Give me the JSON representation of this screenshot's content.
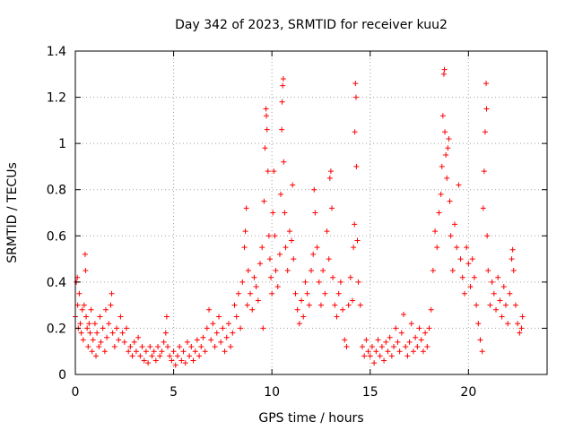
{
  "chart_data": {
    "type": "scatter",
    "title": "Day 342 of 2023, SRMTID for receiver kuu2",
    "xlabel": "GPS time / hours",
    "ylabel": "SRMTID / TECUs",
    "xlim": [
      0,
      24
    ],
    "ylim": [
      0,
      1.4
    ],
    "xticks": [
      0,
      5,
      10,
      15,
      20
    ],
    "xtick_labels": [
      "0",
      "5",
      "10",
      "15",
      "20"
    ],
    "yticks": [
      0,
      0.2,
      0.4,
      0.6,
      0.8,
      1.0,
      1.2,
      1.4
    ],
    "ytick_labels": [
      "0",
      "0.2",
      "0.4",
      "0.6",
      "0.8",
      "1",
      "1.2",
      "1.4"
    ],
    "grid": true,
    "marker": "+",
    "series": [
      {
        "name": "SRMTID",
        "color": "#ff0000",
        "points": [
          [
            0.0,
            0.25
          ],
          [
            0.05,
            0.4
          ],
          [
            0.1,
            0.42
          ],
          [
            0.12,
            0.3
          ],
          [
            0.15,
            0.2
          ],
          [
            0.2,
            0.35
          ],
          [
            0.25,
            0.22
          ],
          [
            0.3,
            0.18
          ],
          [
            0.35,
            0.28
          ],
          [
            0.4,
            0.15
          ],
          [
            0.45,
            0.3
          ],
          [
            0.5,
            0.52
          ],
          [
            0.52,
            0.45
          ],
          [
            0.55,
            0.25
          ],
          [
            0.6,
            0.2
          ],
          [
            0.65,
            0.12
          ],
          [
            0.7,
            0.22
          ],
          [
            0.75,
            0.18
          ],
          [
            0.8,
            0.28
          ],
          [
            0.85,
            0.1
          ],
          [
            0.9,
            0.15
          ],
          [
            1.0,
            0.22
          ],
          [
            1.05,
            0.08
          ],
          [
            1.1,
            0.18
          ],
          [
            1.2,
            0.12
          ],
          [
            1.25,
            0.25
          ],
          [
            1.3,
            0.14
          ],
          [
            1.4,
            0.2
          ],
          [
            1.5,
            0.1
          ],
          [
            1.55,
            0.28
          ],
          [
            1.6,
            0.16
          ],
          [
            1.7,
            0.22
          ],
          [
            1.8,
            0.3
          ],
          [
            1.85,
            0.35
          ],
          [
            1.9,
            0.18
          ],
          [
            2.0,
            0.12
          ],
          [
            2.1,
            0.2
          ],
          [
            2.2,
            0.15
          ],
          [
            2.3,
            0.25
          ],
          [
            2.4,
            0.18
          ],
          [
            2.5,
            0.14
          ],
          [
            2.6,
            0.2
          ],
          [
            2.7,
            0.1
          ],
          [
            2.8,
            0.12
          ],
          [
            2.9,
            0.08
          ],
          [
            3.0,
            0.14
          ],
          [
            3.1,
            0.1
          ],
          [
            3.2,
            0.16
          ],
          [
            3.3,
            0.08
          ],
          [
            3.4,
            0.12
          ],
          [
            3.5,
            0.06
          ],
          [
            3.6,
            0.1
          ],
          [
            3.7,
            0.05
          ],
          [
            3.8,
            0.12
          ],
          [
            3.9,
            0.08
          ],
          [
            4.0,
            0.1
          ],
          [
            4.1,
            0.06
          ],
          [
            4.2,
            0.12
          ],
          [
            4.3,
            0.08
          ],
          [
            4.4,
            0.1
          ],
          [
            4.5,
            0.14
          ],
          [
            4.6,
            0.18
          ],
          [
            4.65,
            0.25
          ],
          [
            4.7,
            0.12
          ],
          [
            4.8,
            0.08
          ],
          [
            4.9,
            0.06
          ],
          [
            5.0,
            0.1
          ],
          [
            5.1,
            0.04
          ],
          [
            5.2,
            0.08
          ],
          [
            5.3,
            0.12
          ],
          [
            5.4,
            0.06
          ],
          [
            5.5,
            0.1
          ],
          [
            5.6,
            0.05
          ],
          [
            5.7,
            0.14
          ],
          [
            5.8,
            0.08
          ],
          [
            5.9,
            0.12
          ],
          [
            6.0,
            0.06
          ],
          [
            6.1,
            0.1
          ],
          [
            6.2,
            0.15
          ],
          [
            6.3,
            0.08
          ],
          [
            6.4,
            0.12
          ],
          [
            6.5,
            0.16
          ],
          [
            6.6,
            0.1
          ],
          [
            6.7,
            0.2
          ],
          [
            6.8,
            0.28
          ],
          [
            6.9,
            0.15
          ],
          [
            7.0,
            0.22
          ],
          [
            7.1,
            0.12
          ],
          [
            7.2,
            0.18
          ],
          [
            7.3,
            0.25
          ],
          [
            7.4,
            0.14
          ],
          [
            7.5,
            0.2
          ],
          [
            7.6,
            0.1
          ],
          [
            7.7,
            0.16
          ],
          [
            7.8,
            0.22
          ],
          [
            7.9,
            0.12
          ],
          [
            8.0,
            0.18
          ],
          [
            8.1,
            0.3
          ],
          [
            8.2,
            0.25
          ],
          [
            8.3,
            0.35
          ],
          [
            8.4,
            0.2
          ],
          [
            8.5,
            0.4
          ],
          [
            8.6,
            0.55
          ],
          [
            8.65,
            0.62
          ],
          [
            8.7,
            0.72
          ],
          [
            8.75,
            0.3
          ],
          [
            8.8,
            0.45
          ],
          [
            8.9,
            0.35
          ],
          [
            9.0,
            0.28
          ],
          [
            9.1,
            0.42
          ],
          [
            9.2,
            0.38
          ],
          [
            9.3,
            0.32
          ],
          [
            9.4,
            0.48
          ],
          [
            9.5,
            0.55
          ],
          [
            9.55,
            0.2
          ],
          [
            9.6,
            0.75
          ],
          [
            9.65,
            0.98
          ],
          [
            9.7,
            1.15
          ],
          [
            9.72,
            1.12
          ],
          [
            9.75,
            1.06
          ],
          [
            9.8,
            0.88
          ],
          [
            9.85,
            0.6
          ],
          [
            9.9,
            0.5
          ],
          [
            9.95,
            0.42
          ],
          [
            10.0,
            0.35
          ],
          [
            10.05,
            0.7
          ],
          [
            10.1,
            0.88
          ],
          [
            10.15,
            0.6
          ],
          [
            10.2,
            0.45
          ],
          [
            10.3,
            0.38
          ],
          [
            10.4,
            0.52
          ],
          [
            10.45,
            0.78
          ],
          [
            10.5,
            1.06
          ],
          [
            10.52,
            1.18
          ],
          [
            10.55,
            1.25
          ],
          [
            10.58,
            1.28
          ],
          [
            10.6,
            0.92
          ],
          [
            10.65,
            0.7
          ],
          [
            10.7,
            0.55
          ],
          [
            10.8,
            0.45
          ],
          [
            10.9,
            0.62
          ],
          [
            11.0,
            0.58
          ],
          [
            11.05,
            0.82
          ],
          [
            11.1,
            0.5
          ],
          [
            11.2,
            0.35
          ],
          [
            11.3,
            0.28
          ],
          [
            11.4,
            0.22
          ],
          [
            11.5,
            0.32
          ],
          [
            11.6,
            0.25
          ],
          [
            11.7,
            0.4
          ],
          [
            11.8,
            0.35
          ],
          [
            11.9,
            0.3
          ],
          [
            12.0,
            0.45
          ],
          [
            12.1,
            0.52
          ],
          [
            12.15,
            0.8
          ],
          [
            12.2,
            0.7
          ],
          [
            12.3,
            0.55
          ],
          [
            12.4,
            0.4
          ],
          [
            12.5,
            0.3
          ],
          [
            12.6,
            0.45
          ],
          [
            12.7,
            0.35
          ],
          [
            12.8,
            0.62
          ],
          [
            12.9,
            0.5
          ],
          [
            12.95,
            0.85
          ],
          [
            13.0,
            0.88
          ],
          [
            13.05,
            0.72
          ],
          [
            13.1,
            0.42
          ],
          [
            13.2,
            0.3
          ],
          [
            13.3,
            0.25
          ],
          [
            13.4,
            0.35
          ],
          [
            13.5,
            0.4
          ],
          [
            13.6,
            0.28
          ],
          [
            13.7,
            0.15
          ],
          [
            13.8,
            0.12
          ],
          [
            13.9,
            0.3
          ],
          [
            14.0,
            0.42
          ],
          [
            14.1,
            0.32
          ],
          [
            14.15,
            0.55
          ],
          [
            14.2,
            0.65
          ],
          [
            14.22,
            1.05
          ],
          [
            14.25,
            1.26
          ],
          [
            14.28,
            1.2
          ],
          [
            14.3,
            0.9
          ],
          [
            14.35,
            0.58
          ],
          [
            14.4,
            0.4
          ],
          [
            14.5,
            0.3
          ],
          [
            14.6,
            0.12
          ],
          [
            14.7,
            0.08
          ],
          [
            14.8,
            0.15
          ],
          [
            14.9,
            0.1
          ],
          [
            15.0,
            0.08
          ],
          [
            15.1,
            0.12
          ],
          [
            15.2,
            0.05
          ],
          [
            15.3,
            0.1
          ],
          [
            15.4,
            0.15
          ],
          [
            15.5,
            0.08
          ],
          [
            15.6,
            0.12
          ],
          [
            15.7,
            0.06
          ],
          [
            15.8,
            0.14
          ],
          [
            15.9,
            0.1
          ],
          [
            16.0,
            0.16
          ],
          [
            16.1,
            0.08
          ],
          [
            16.2,
            0.12
          ],
          [
            16.3,
            0.2
          ],
          [
            16.4,
            0.14
          ],
          [
            16.5,
            0.1
          ],
          [
            16.6,
            0.18
          ],
          [
            16.7,
            0.26
          ],
          [
            16.8,
            0.12
          ],
          [
            16.9,
            0.08
          ],
          [
            17.0,
            0.14
          ],
          [
            17.1,
            0.22
          ],
          [
            17.2,
            0.1
          ],
          [
            17.3,
            0.16
          ],
          [
            17.4,
            0.12
          ],
          [
            17.5,
            0.2
          ],
          [
            17.6,
            0.15
          ],
          [
            17.7,
            0.1
          ],
          [
            17.8,
            0.18
          ],
          [
            17.9,
            0.12
          ],
          [
            18.0,
            0.2
          ],
          [
            18.1,
            0.28
          ],
          [
            18.2,
            0.45
          ],
          [
            18.3,
            0.62
          ],
          [
            18.4,
            0.55
          ],
          [
            18.5,
            0.7
          ],
          [
            18.6,
            0.78
          ],
          [
            18.65,
            0.9
          ],
          [
            18.7,
            1.12
          ],
          [
            18.75,
            1.3
          ],
          [
            18.78,
            1.32
          ],
          [
            18.8,
            1.05
          ],
          [
            18.85,
            0.95
          ],
          [
            18.9,
            0.85
          ],
          [
            18.95,
            0.98
          ],
          [
            19.0,
            1.02
          ],
          [
            19.05,
            0.75
          ],
          [
            19.1,
            0.6
          ],
          [
            19.2,
            0.45
          ],
          [
            19.3,
            0.65
          ],
          [
            19.4,
            0.55
          ],
          [
            19.5,
            0.82
          ],
          [
            19.6,
            0.5
          ],
          [
            19.7,
            0.42
          ],
          [
            19.8,
            0.35
          ],
          [
            19.9,
            0.55
          ],
          [
            20.0,
            0.48
          ],
          [
            20.1,
            0.38
          ],
          [
            20.2,
            0.5
          ],
          [
            20.3,
            0.42
          ],
          [
            20.4,
            0.3
          ],
          [
            20.5,
            0.22
          ],
          [
            20.6,
            0.15
          ],
          [
            20.7,
            0.1
          ],
          [
            20.75,
            0.72
          ],
          [
            20.8,
            0.88
          ],
          [
            20.85,
            1.05
          ],
          [
            20.9,
            1.26
          ],
          [
            20.92,
            1.15
          ],
          [
            20.95,
            0.6
          ],
          [
            21.0,
            0.45
          ],
          [
            21.1,
            0.3
          ],
          [
            21.2,
            0.4
          ],
          [
            21.3,
            0.35
          ],
          [
            21.4,
            0.28
          ],
          [
            21.5,
            0.42
          ],
          [
            21.6,
            0.32
          ],
          [
            21.7,
            0.25
          ],
          [
            21.8,
            0.38
          ],
          [
            21.9,
            0.3
          ],
          [
            22.0,
            0.22
          ],
          [
            22.1,
            0.35
          ],
          [
            22.2,
            0.5
          ],
          [
            22.25,
            0.54
          ],
          [
            22.3,
            0.45
          ],
          [
            22.4,
            0.3
          ],
          [
            22.5,
            0.22
          ],
          [
            22.6,
            0.18
          ],
          [
            22.7,
            0.2
          ],
          [
            22.75,
            0.25
          ]
        ]
      }
    ]
  }
}
